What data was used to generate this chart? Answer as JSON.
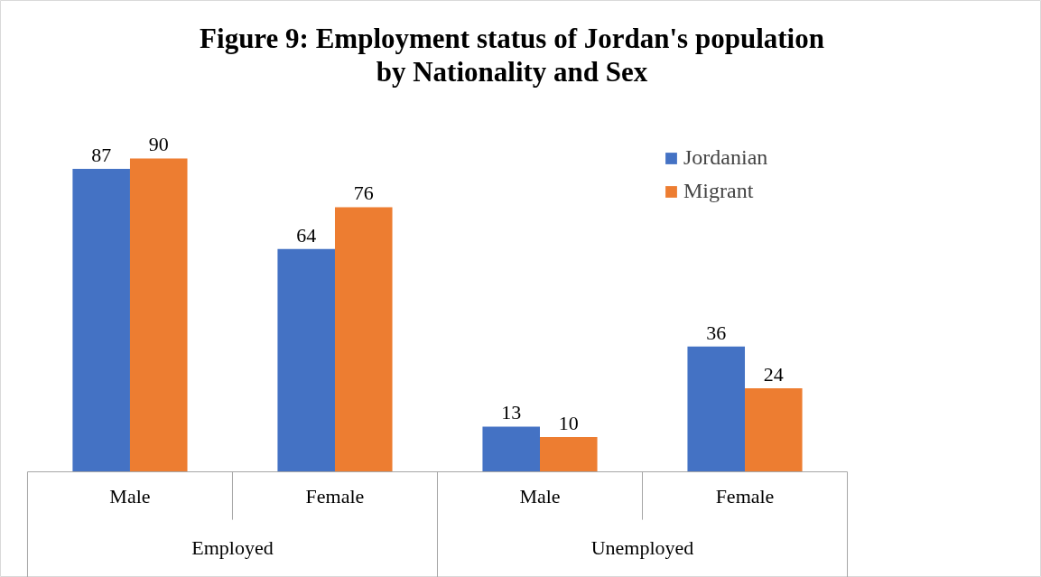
{
  "chart_data": {
    "type": "bar",
    "title": "Figure 9: Employment status of Jordan's population by Nationality and Sex",
    "categories": [
      "Male",
      "Female",
      "Male",
      "Female"
    ],
    "annotations": [
      "Employed",
      "Unemployed"
    ],
    "series": [
      {
        "name": "Jordanian",
        "color": "#4472c4",
        "values": [
          87,
          64,
          13,
          36
        ]
      },
      {
        "name": "Migrant",
        "color": "#ed7d31",
        "values": [
          90,
          76,
          10,
          24
        ]
      }
    ],
    "data_labels": true,
    "legend": "top right",
    "grid": false
  }
}
